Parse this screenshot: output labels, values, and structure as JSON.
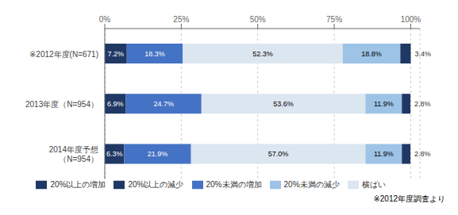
{
  "chart_data": {
    "type": "bar",
    "orientation": "horizontal",
    "stacked": true,
    "grid": true,
    "legend": "bottom",
    "data_labels": true,
    "annotations": [
      "※2012年度調査より"
    ],
    "categories": [
      "※2012年度(N=671)",
      "2013年度（N=954）",
      "2014年度予想\n（N=954）"
    ],
    "xlim": [
      0,
      103
    ],
    "xticks": [
      {
        "value": 0,
        "label": "0%"
      },
      {
        "value": 25,
        "label": "25%"
      },
      {
        "value": 50,
        "label": "50%"
      },
      {
        "value": 75,
        "label": "75%"
      },
      {
        "value": 100,
        "label": "100%"
      }
    ],
    "series": [
      {
        "name": "20%以上の増加",
        "color": "#1f3864",
        "values": [
          7.2,
          6.9,
          6.3
        ],
        "value_labels": [
          "7.2%",
          "6.9%",
          "6.3%"
        ]
      },
      {
        "name": "20%未満の増加",
        "color": "#4472c4",
        "values": [
          18.3,
          24.7,
          21.9
        ],
        "value_labels": [
          "18.3%",
          "24.7%",
          "21.9%"
        ]
      },
      {
        "name": "横ばい",
        "color": "#dce6f1",
        "values": [
          52.3,
          53.6,
          57.0
        ],
        "value_labels": [
          "52.3%",
          "53.6%",
          "57.0%"
        ]
      },
      {
        "name": "20%未満の減少",
        "color": "#9dc3e6",
        "values": [
          18.8,
          11.9,
          11.9
        ],
        "value_labels": [
          "18.8%",
          "11.9%",
          "11.9%"
        ]
      },
      {
        "name": "20%以上の減少",
        "color": "#1f3864",
        "values": [
          3.4,
          2.8,
          2.8
        ],
        "value_labels": [
          "3.4%",
          "2.8%",
          "2.8%"
        ]
      }
    ]
  }
}
